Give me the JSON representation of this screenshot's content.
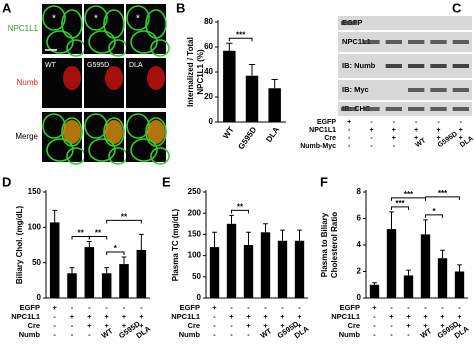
{
  "figure": {
    "A": {
      "label": "A",
      "rows": [
        "NPC1L1",
        "Numb",
        "Merge"
      ],
      "columns": [
        "WT",
        "G595D",
        "DLA"
      ],
      "marks": [
        "*",
        "*",
        "*"
      ]
    },
    "C": {
      "label": "C",
      "blots": [
        "EGFP",
        "NPC1L1",
        "IB: Numb",
        "IB: Myc",
        "IB: CHC"
      ],
      "conditions": {
        "labels": [
          "EGFP",
          "NPC1L1",
          "Cre",
          "Numb-Myc"
        ],
        "rows": [
          [
            "+",
            "-",
            "-",
            "-",
            "-",
            "-"
          ],
          [
            "-",
            "+",
            "+",
            "+",
            "+",
            "+"
          ],
          [
            "-",
            "-",
            "+",
            "+",
            "+",
            "+"
          ],
          [
            "-",
            "-",
            "-",
            "WT",
            "G595D",
            "DLA"
          ]
        ]
      }
    }
  },
  "chart_data": [
    {
      "type": "bar",
      "label": "B",
      "y_label": [
        "Internalized / Total",
        "NPC1L1 (%)"
      ],
      "categories": [
        "WT",
        "G595D",
        "DLA"
      ],
      "values": [
        57,
        37,
        27
      ],
      "errors": [
        6,
        9,
        7
      ],
      "color": "#000000",
      "ylim": [
        0,
        80
      ],
      "yticks": [
        0,
        20,
        40,
        60,
        80
      ],
      "significance": [
        "***"
      ]
    },
    {
      "type": "bar",
      "label": "D",
      "y_label": [
        "Biliary Chol. (mg/dL)"
      ],
      "values": [
        107,
        35,
        72,
        35,
        48,
        68
      ],
      "errors": [
        17,
        8,
        8,
        8,
        10,
        22
      ],
      "color": "#000000",
      "ylim": [
        0,
        150
      ],
      "yticks": [
        0,
        50,
        100,
        150
      ],
      "significance": [
        "**",
        "**",
        "*",
        "**"
      ],
      "conditions": {
        "labels": [
          "EGFP",
          "NPC1L1",
          "Cre",
          "Numb"
        ],
        "rows": [
          [
            "+",
            "-",
            "-",
            "-",
            "-",
            "-"
          ],
          [
            "-",
            "+",
            "+",
            "+",
            "+",
            "+"
          ],
          [
            "-",
            "-",
            "+",
            "+",
            "+",
            "+"
          ],
          [
            "-",
            "-",
            "-",
            "WT",
            "G595D",
            "DLA"
          ]
        ]
      }
    },
    {
      "type": "bar",
      "label": "E",
      "y_label": [
        "Plasma TC (mg/dL)"
      ],
      "values": [
        120,
        175,
        125,
        155,
        135,
        135
      ],
      "errors": [
        35,
        20,
        30,
        20,
        25,
        25
      ],
      "color": "#000000",
      "ylim": [
        0,
        250
      ],
      "yticks": [
        0,
        50,
        100,
        150,
        200,
        250
      ],
      "significance": [
        "**"
      ],
      "conditions": {
        "labels": [
          "EGFP",
          "NPC1L1",
          "Cre",
          "Numb"
        ],
        "rows": [
          [
            "+",
            "-",
            "-",
            "-",
            "-",
            "-"
          ],
          [
            "-",
            "+",
            "+",
            "+",
            "+",
            "+"
          ],
          [
            "-",
            "-",
            "+",
            "+",
            "+",
            "+"
          ],
          [
            "-",
            "-",
            "-",
            "WT",
            "G595D",
            "DLA"
          ]
        ]
      }
    },
    {
      "type": "bar",
      "label": "F",
      "y_label": [
        "Plasma to Biliary",
        "Cholesterol Ratio"
      ],
      "values": [
        1.0,
        5.2,
        1.7,
        4.8,
        3.0,
        2.0
      ],
      "errors": [
        0.15,
        1.3,
        0.4,
        1.1,
        0.6,
        0.5
      ],
      "color": "#000000",
      "ylim": [
        0,
        8
      ],
      "yticks": [
        0,
        2,
        4,
        6,
        8
      ],
      "significance": [
        "***",
        "***",
        "*",
        "***"
      ],
      "conditions": {
        "labels": [
          "EGFP",
          "NPC1L1",
          "Cre",
          "Numb"
        ],
        "rows": [
          [
            "+",
            "-",
            "-",
            "-",
            "-",
            "-"
          ],
          [
            "-",
            "+",
            "+",
            "+",
            "+",
            "+"
          ],
          [
            "-",
            "-",
            "+",
            "+",
            "+",
            "+"
          ],
          [
            "-",
            "-",
            "-",
            "WT",
            "G595D",
            "DLA"
          ]
        ]
      }
    }
  ]
}
